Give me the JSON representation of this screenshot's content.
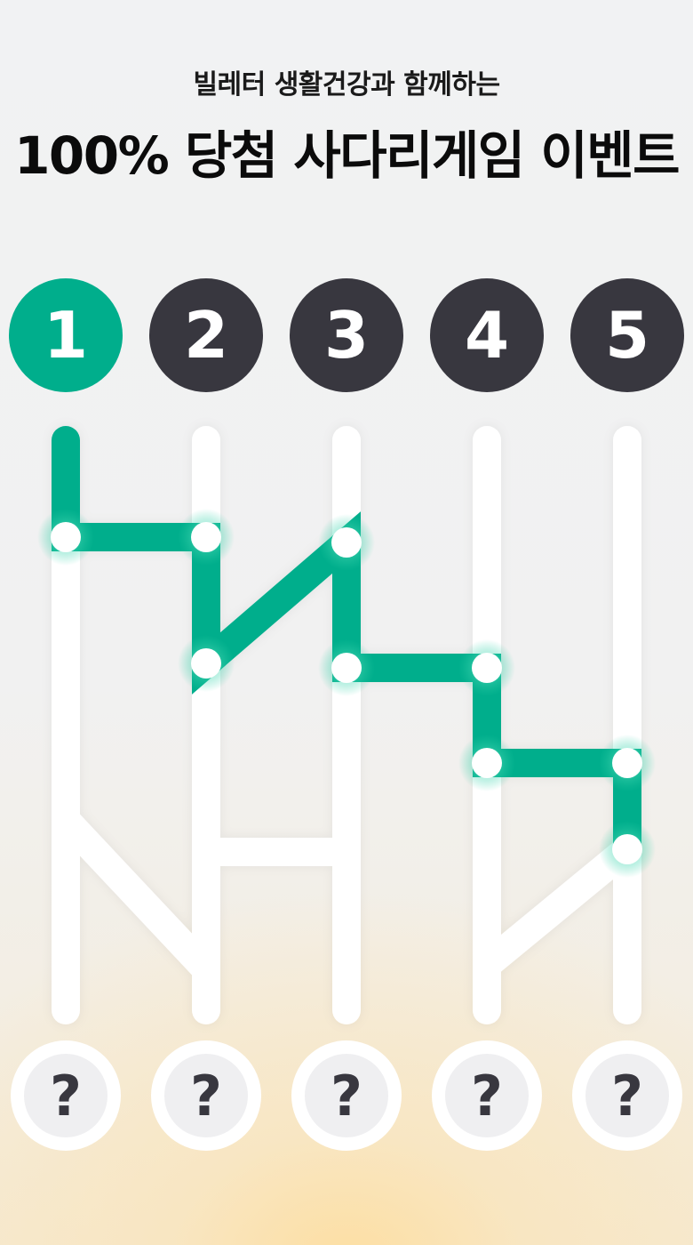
{
  "header": {
    "subtitle": "빌레터 생활건강과 함께하는",
    "title": "100% 당첨 사다리게임 이벤트"
  },
  "players": [
    {
      "label": "1",
      "selected": true
    },
    {
      "label": "2",
      "selected": false
    },
    {
      "label": "3",
      "selected": false
    },
    {
      "label": "4",
      "selected": false
    },
    {
      "label": "5",
      "selected": false
    }
  ],
  "results": [
    {
      "label": "?"
    },
    {
      "label": "?"
    },
    {
      "label": "?"
    },
    {
      "label": "?"
    },
    {
      "label": "?"
    }
  ],
  "colors": {
    "accent": "#00ae8c",
    "dark": "#38373f",
    "rail": "#ffffff"
  },
  "icons": {
    "result": "question-mark-icon",
    "path_node": "glowing-node-icon"
  }
}
